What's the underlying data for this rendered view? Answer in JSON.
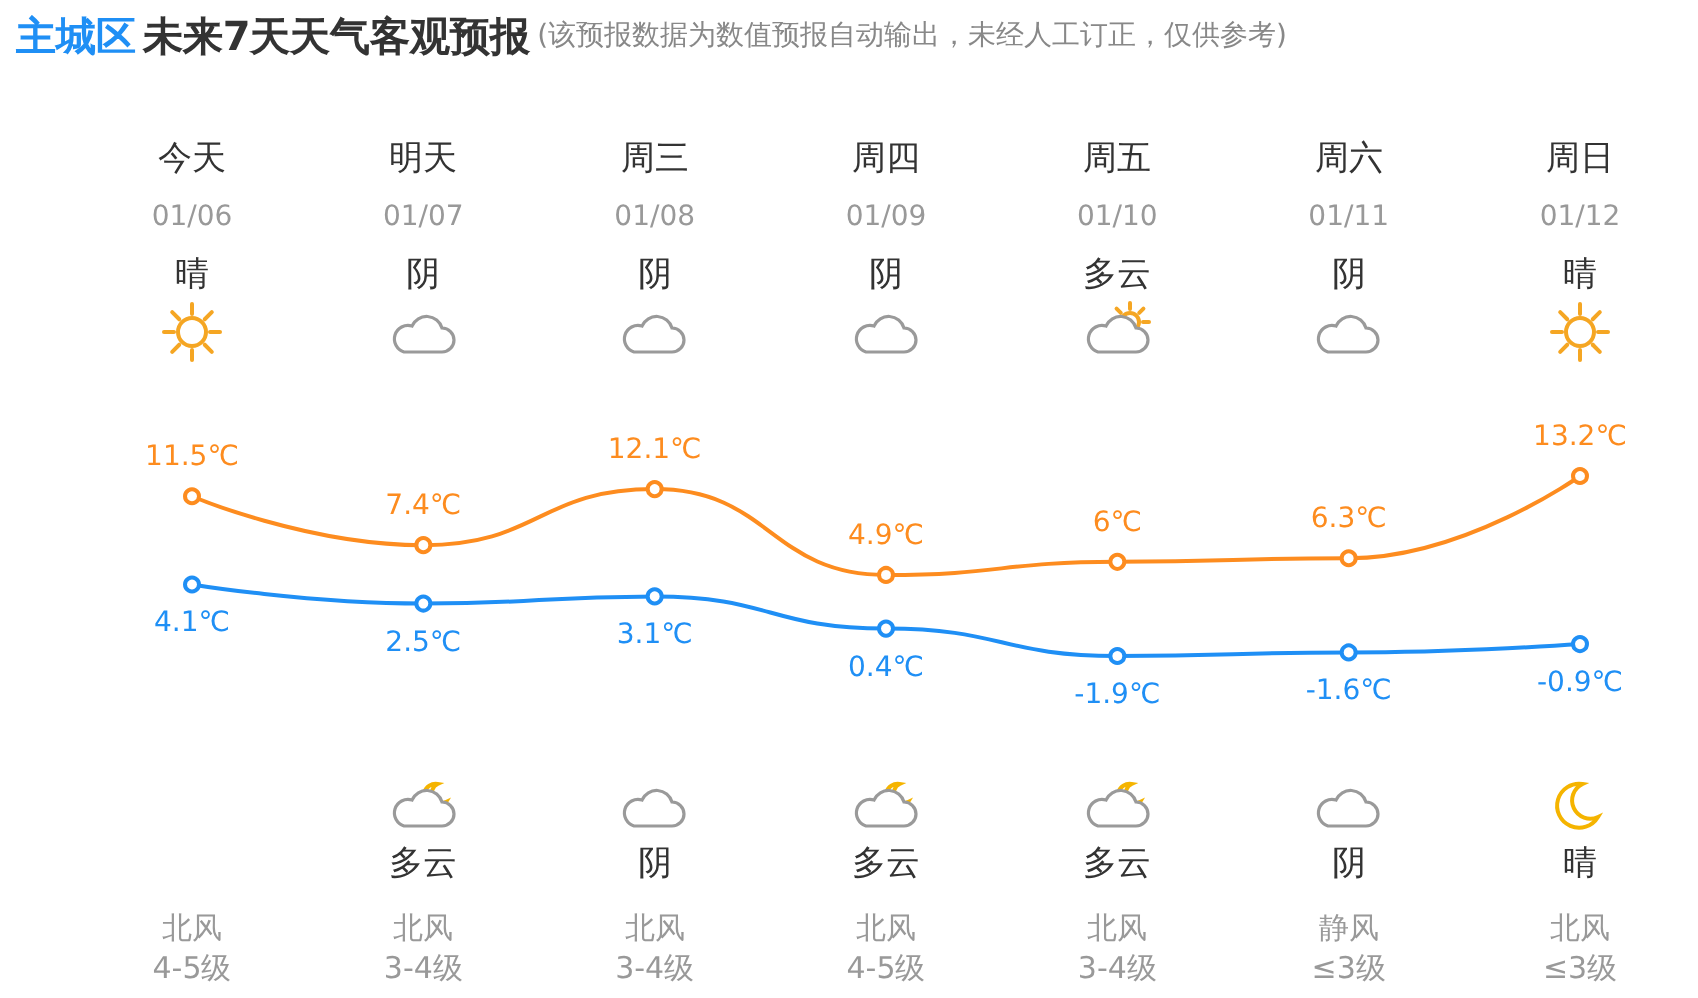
{
  "chart_data": {
    "type": "line",
    "title": "主城区 未来7天天气客观预报",
    "subtitle": "(该预报数据为数值预报自动输出，未经人工订正，仅供参考)",
    "categories": [
      "今天\n01/06\n晴",
      "明天\n01/07\n阴",
      "周三\n01/08\n阴",
      "周四\n01/09\n阴",
      "周五\n01/10\n多云",
      "周六\n01/11\n阴",
      "周日\n01/12\n晴"
    ],
    "series": [
      {
        "color": "#fd8c1f",
        "values": [
          11.5,
          7.4,
          12.1,
          4.9,
          6,
          6.3,
          13.2
        ],
        "value_labels": [
          "11.5℃",
          "7.4℃",
          "12.1℃",
          "4.9℃",
          "6℃",
          "6.3℃",
          "13.2℃"
        ]
      },
      {
        "color": "#1f8ff5",
        "values": [
          4.1,
          2.5,
          3.1,
          0.4,
          -1.9,
          -1.6,
          -0.9
        ],
        "value_labels": [
          "4.1℃",
          "2.5℃",
          "3.1℃",
          "0.4℃",
          "-1.9℃",
          "-1.6℃",
          "-0.9℃"
        ]
      }
    ],
    "marker": "circle",
    "annotations": [
      "北风\n4-5级",
      "北风\n3-4级",
      "北风\n3-4级",
      "北风\n4-5级",
      "北风\n3-4级",
      "静风\n≤3级",
      "北风\n≤3级",
      "多云",
      "阴",
      "多云",
      "多云",
      "阴",
      "晴"
    ]
  }
}
